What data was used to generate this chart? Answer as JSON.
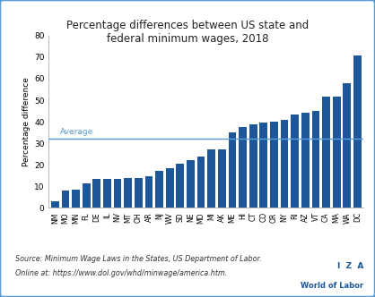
{
  "title": "Percentage differences between US state and\nfederal minimum wages, 2018",
  "ylabel": "Percentage difference",
  "categories": [
    "NM",
    "MO",
    "MN",
    "FL",
    "DE",
    "IL",
    "NV",
    "MT",
    "OH",
    "AR",
    "NJ",
    "WV",
    "SD",
    "NE",
    "MD",
    "MI",
    "AK",
    "ME",
    "HI",
    "CT",
    "CO",
    "OR",
    "NY",
    "RI",
    "AZ",
    "VT",
    "CA",
    "MA",
    "WA",
    "DC"
  ],
  "values": [
    3,
    8,
    8.5,
    11.5,
    13.5,
    13.5,
    13.5,
    14,
    14,
    14.5,
    17,
    18.5,
    20.5,
    22,
    24,
    27,
    27,
    35,
    37.5,
    39,
    39.5,
    40,
    41,
    43.5,
    44,
    45,
    51.5,
    51.5,
    58,
    71
  ],
  "bar_color": "#1e5799",
  "average_line": 32,
  "average_label": "Average",
  "ylim": [
    0,
    80
  ],
  "yticks": [
    0,
    10,
    20,
    30,
    40,
    50,
    60,
    70,
    80
  ],
  "source_line1": "Source: Minimum Wage Laws in the States, US Department of Labor.",
  "source_line2": "Online at: https://www.dol.gov/whd/minwage/america.htm.",
  "iza_line1": "I  Z  A",
  "iza_line2": "World of Labor",
  "background_color": "#ffffff",
  "border_color": "#5b9bd5",
  "avg_color": "#5b9bd5"
}
